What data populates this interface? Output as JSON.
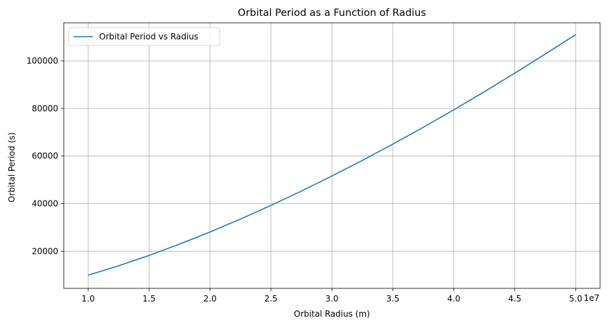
{
  "chart_data": {
    "type": "line",
    "title": "Orbital Period as a Function of Radius",
    "xlabel": "Orbital Radius (m)",
    "ylabel": "Orbital Period (s)",
    "x_offset_label": "1e7",
    "x_scale": 10000000,
    "xlim": [
      0.8,
      5.2
    ],
    "ylim": [
      4400,
      116000
    ],
    "x_ticks": [
      1.0,
      1.5,
      2.0,
      2.5,
      3.0,
      3.5,
      4.0,
      4.5,
      5.0
    ],
    "x_tick_labels": [
      "1.0",
      "1.5",
      "2.0",
      "2.5",
      "3.0",
      "3.5",
      "4.0",
      "4.5",
      "5.0"
    ],
    "y_ticks": [
      20000,
      40000,
      60000,
      80000,
      100000
    ],
    "y_tick_labels": [
      "20000",
      "40000",
      "60000",
      "80000",
      "100000"
    ],
    "grid": true,
    "legend_position": "top-left",
    "series": [
      {
        "name": "Orbital Period vs Radius",
        "color": "#1f77b4",
        "x": [
          1.0,
          1.25,
          1.5,
          1.75,
          2.0,
          2.25,
          2.5,
          2.75,
          3.0,
          3.25,
          3.5,
          3.75,
          4.0,
          4.25,
          4.5,
          4.75,
          5.0
        ],
        "y": [
          9930,
          13880,
          18240,
          22990,
          28090,
          33520,
          39260,
          45290,
          51600,
          58180,
          65020,
          72110,
          79450,
          87030,
          94840,
          102880,
          111030
        ]
      }
    ]
  }
}
